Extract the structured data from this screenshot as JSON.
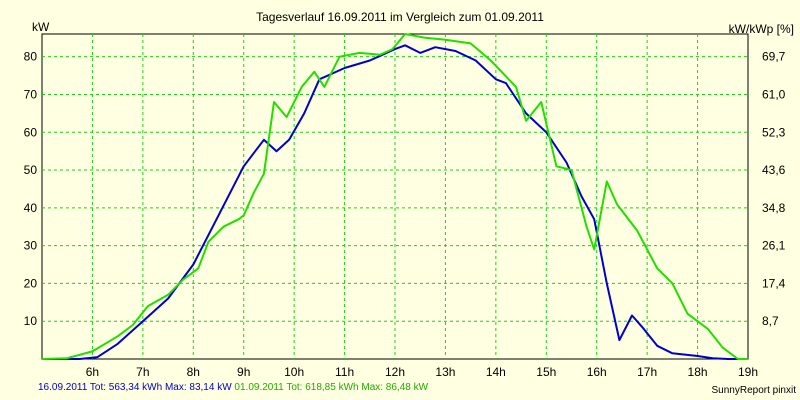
{
  "chart_data": {
    "type": "line",
    "title": "Tagesverlauf 16.09.2011 im Vergleich zum 01.09.2011",
    "ylabel": "kW",
    "ylabel_right": "kW/kWp [%]",
    "ylim": [
      0,
      86
    ],
    "xlim": [
      5,
      19
    ],
    "yticks": [
      10,
      20,
      30,
      40,
      50,
      60,
      70,
      80
    ],
    "right_ticks": [
      "8,7",
      "17,4",
      "26,1",
      "34,8",
      "43,6",
      "52,3",
      "61,0",
      "69,7"
    ],
    "xticks": [
      {
        "v": 6,
        "label": "6h"
      },
      {
        "v": 7,
        "label": "7h"
      },
      {
        "v": 8,
        "label": "8h"
      },
      {
        "v": 9,
        "label": "9h"
      },
      {
        "v": 10,
        "label": "10h"
      },
      {
        "v": 11,
        "label": "11h"
      },
      {
        "v": 12,
        "label": "12h"
      },
      {
        "v": 13,
        "label": "13h"
      },
      {
        "v": 14,
        "label": "14h"
      },
      {
        "v": 15,
        "label": "15h"
      },
      {
        "v": 16,
        "label": "16h"
      },
      {
        "v": 17,
        "label": "17h"
      },
      {
        "v": 18,
        "label": "18h"
      },
      {
        "v": 19,
        "label": "19h"
      }
    ],
    "grid": true,
    "series": [
      {
        "color": "#0000cc",
        "points": [
          [
            5.0,
            0
          ],
          [
            5.75,
            0
          ],
          [
            6.1,
            0.5
          ],
          [
            6.5,
            4
          ],
          [
            7.0,
            10
          ],
          [
            7.5,
            16
          ],
          [
            8.0,
            25
          ],
          [
            8.5,
            38
          ],
          [
            9.0,
            51
          ],
          [
            9.4,
            58
          ],
          [
            9.65,
            55
          ],
          [
            9.9,
            58
          ],
          [
            10.2,
            65
          ],
          [
            10.5,
            74
          ],
          [
            11.0,
            77
          ],
          [
            11.5,
            79
          ],
          [
            12.0,
            82
          ],
          [
            12.2,
            83
          ],
          [
            12.5,
            81
          ],
          [
            12.8,
            82.5
          ],
          [
            13.2,
            81.5
          ],
          [
            13.6,
            79
          ],
          [
            14.0,
            74
          ],
          [
            14.2,
            73
          ],
          [
            14.6,
            65
          ],
          [
            15.0,
            60
          ],
          [
            15.4,
            52
          ],
          [
            15.7,
            43
          ],
          [
            15.95,
            37
          ],
          [
            16.2,
            20
          ],
          [
            16.45,
            5
          ],
          [
            16.7,
            11.5
          ],
          [
            16.9,
            8.5
          ],
          [
            17.2,
            3.5
          ],
          [
            17.5,
            1.5
          ],
          [
            18.0,
            0.8
          ],
          [
            18.3,
            0.2
          ],
          [
            18.6,
            0
          ],
          [
            19.0,
            0
          ]
        ]
      },
      {
        "color": "#22dd00",
        "points": [
          [
            5.0,
            0
          ],
          [
            5.5,
            0.2
          ],
          [
            6.0,
            2
          ],
          [
            6.5,
            6
          ],
          [
            6.8,
            9
          ],
          [
            7.1,
            14
          ],
          [
            7.5,
            17
          ],
          [
            7.8,
            21
          ],
          [
            8.1,
            24
          ],
          [
            8.3,
            31
          ],
          [
            8.6,
            35
          ],
          [
            8.9,
            37
          ],
          [
            9.0,
            38
          ],
          [
            9.2,
            44
          ],
          [
            9.4,
            49
          ],
          [
            9.6,
            68
          ],
          [
            9.85,
            64
          ],
          [
            10.15,
            72
          ],
          [
            10.4,
            76
          ],
          [
            10.6,
            72
          ],
          [
            10.9,
            80
          ],
          [
            11.3,
            81
          ],
          [
            11.7,
            80.5
          ],
          [
            11.95,
            82
          ],
          [
            12.2,
            86
          ],
          [
            12.6,
            85
          ],
          [
            13.0,
            84.5
          ],
          [
            13.5,
            83.5
          ],
          [
            13.9,
            79
          ],
          [
            14.4,
            72
          ],
          [
            14.6,
            63
          ],
          [
            14.9,
            68
          ],
          [
            15.2,
            51
          ],
          [
            15.5,
            50
          ],
          [
            15.8,
            35
          ],
          [
            15.95,
            29
          ],
          [
            16.2,
            47
          ],
          [
            16.4,
            41
          ],
          [
            16.8,
            34
          ],
          [
            17.2,
            24
          ],
          [
            17.5,
            20
          ],
          [
            17.8,
            12
          ],
          [
            18.2,
            8
          ],
          [
            18.5,
            3
          ],
          [
            18.8,
            0
          ],
          [
            19.0,
            0
          ]
        ]
      }
    ]
  },
  "footer": {
    "series1_text": "16.09.2011 Tot: 563,34 kWh Max: 83,14 kW",
    "series2_text": " 01.09.2011 Tot: 618,85 kWh Max: 86,48 kW",
    "credit": "SunnyReport pinxit"
  }
}
